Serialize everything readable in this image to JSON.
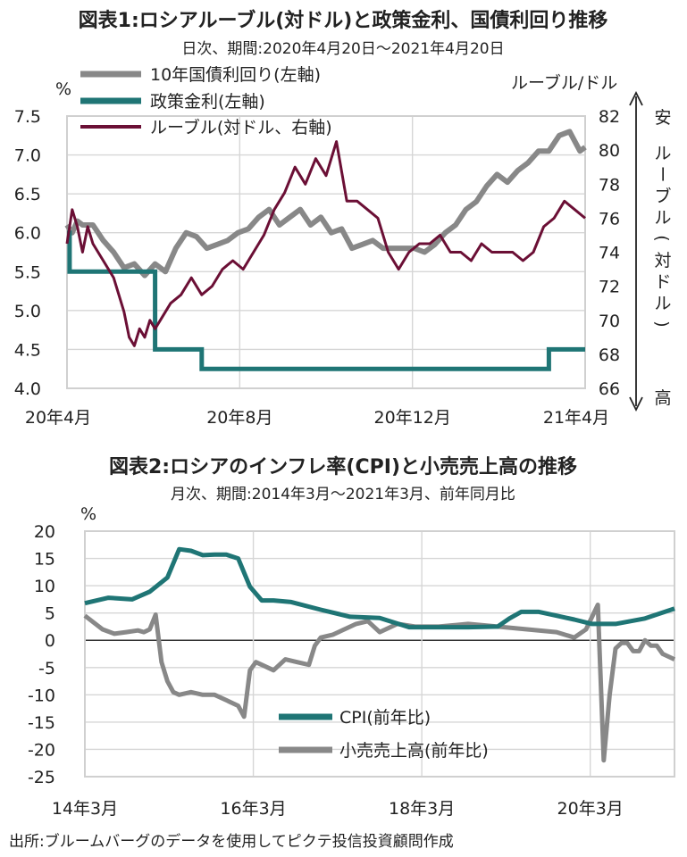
{
  "colors": {
    "bond": "#888888",
    "policy": "#1f7575",
    "rub": "#6b0f35",
    "cpi": "#1f7575",
    "retail": "#888888",
    "grid": "#d6d6d6",
    "text": "#222222"
  },
  "chart1": {
    "title": "図表1:ロシアルーブル(対ドル)と政策金利、国債利回り推移",
    "subtitle": "日次、期間:2020年4月20日～2021年4月20日",
    "left_unit": "%",
    "right_unit": "ルーブル/ドル",
    "right_axis_label_chars": [
      "ル",
      "ー",
      "ブ",
      "ル",
      "(",
      "対",
      "ド",
      "ル",
      ")"
    ],
    "right_axis_top": "安",
    "right_axis_bottom": "高",
    "legend": [
      "10年国債利回り(左軸)",
      "政策金利(左軸)",
      "ルーブル(対ドル、右軸)"
    ],
    "left_ticks": [
      "7.5",
      "7.0",
      "6.5",
      "6.0",
      "5.5",
      "5.0",
      "4.5",
      "4.0"
    ],
    "right_ticks": [
      "82",
      "80",
      "78",
      "76",
      "74",
      "72",
      "70",
      "68",
      "66"
    ],
    "x_ticks": [
      "20年4月",
      "20年8月",
      "20年12月",
      "21年4月"
    ]
  },
  "chart2": {
    "title": "図表2:ロシアのインフレ率(CPI)と小売売上高の推移",
    "subtitle": "月次、期間:2014年3月～2021年3月、前年同月比",
    "unit": "%",
    "y_ticks": [
      "20",
      "15",
      "10",
      "5",
      "0",
      "-5",
      "-10",
      "-15",
      "-20",
      "-25"
    ],
    "x_ticks": [
      "14年3月",
      "16年3月",
      "18年3月",
      "20年3月"
    ],
    "legend": [
      "CPI(前年比)",
      "小売売上高(前年比)"
    ]
  },
  "source": "出所:ブルームバーグのデータを使用してピクテ投信投資顧問作成",
  "chart_data": [
    {
      "type": "line",
      "title": "図表1:ロシアルーブル(対ドル)と政策金利、国債利回り推移",
      "x_range": [
        "2020-04-20",
        "2021-04-20"
      ],
      "x_ticks": [
        "20年4月",
        "20年8月",
        "20年12月",
        "21年4月"
      ],
      "y_left_range": [
        4.0,
        7.5
      ],
      "y_right_range": [
        66,
        82
      ],
      "y_right_direction": "inverted-label: 安 top, 高 bottom",
      "series": [
        {
          "name": "10年国債利回り(左軸)",
          "axis": "left",
          "t": [
            0,
            0.01,
            0.02,
            0.03,
            0.05,
            0.07,
            0.09,
            0.11,
            0.13,
            0.15,
            0.17,
            0.19,
            0.21,
            0.23,
            0.25,
            0.27,
            0.29,
            0.31,
            0.33,
            0.35,
            0.37,
            0.39,
            0.41,
            0.43,
            0.45,
            0.47,
            0.49,
            0.51,
            0.53,
            0.55,
            0.57,
            0.59,
            0.61,
            0.63,
            0.65,
            0.67,
            0.69,
            0.71,
            0.73,
            0.75,
            0.77,
            0.79,
            0.81,
            0.83,
            0.85,
            0.87,
            0.89,
            0.91,
            0.93,
            0.95,
            0.97,
            0.99,
            1.0
          ],
          "values": [
            6.1,
            6.0,
            6.15,
            6.1,
            6.1,
            5.9,
            5.75,
            5.55,
            5.6,
            5.45,
            5.6,
            5.5,
            5.8,
            6.0,
            5.95,
            5.8,
            5.85,
            5.9,
            6.0,
            6.05,
            6.2,
            6.3,
            6.1,
            6.2,
            6.3,
            6.1,
            6.2,
            6.0,
            6.05,
            5.8,
            5.85,
            5.9,
            5.8,
            5.8,
            5.8,
            5.8,
            5.75,
            5.85,
            6.0,
            6.1,
            6.3,
            6.4,
            6.6,
            6.75,
            6.65,
            6.8,
            6.9,
            7.05,
            7.05,
            7.25,
            7.3,
            7.05,
            7.1
          ]
        },
        {
          "name": "政策金利(左軸)",
          "axis": "left",
          "steps": [
            {
              "from": 0.0,
              "to": 0.005,
              "value": 6.0
            },
            {
              "from": 0.005,
              "to": 0.17,
              "value": 5.5
            },
            {
              "from": 0.17,
              "to": 0.26,
              "value": 4.5
            },
            {
              "from": 0.26,
              "to": 0.93,
              "value": 4.25
            },
            {
              "from": 0.93,
              "to": 1.0,
              "value": 4.5
            }
          ]
        },
        {
          "name": "ルーブル(対ドル、右軸)",
          "axis": "right",
          "t": [
            0,
            0.01,
            0.02,
            0.03,
            0.04,
            0.05,
            0.07,
            0.09,
            0.11,
            0.12,
            0.13,
            0.14,
            0.15,
            0.16,
            0.17,
            0.18,
            0.2,
            0.22,
            0.24,
            0.26,
            0.28,
            0.3,
            0.32,
            0.34,
            0.36,
            0.38,
            0.4,
            0.42,
            0.44,
            0.46,
            0.48,
            0.5,
            0.52,
            0.54,
            0.56,
            0.58,
            0.6,
            0.62,
            0.64,
            0.66,
            0.68,
            0.7,
            0.72,
            0.74,
            0.76,
            0.78,
            0.8,
            0.82,
            0.84,
            0.86,
            0.88,
            0.9,
            0.92,
            0.94,
            0.96,
            0.98,
            1.0
          ],
          "values": [
            74.5,
            76.5,
            75.5,
            74,
            75.5,
            74.5,
            73.5,
            72.5,
            70.5,
            69,
            68.5,
            69.5,
            69,
            70,
            69.5,
            70,
            71,
            71.5,
            72.5,
            71.5,
            72,
            73,
            73.5,
            73,
            74,
            75,
            76.5,
            77.5,
            79,
            78,
            79.5,
            78.5,
            80.5,
            77,
            77,
            76.5,
            76,
            74,
            73,
            74,
            74.5,
            74.5,
            75,
            74,
            74,
            73.5,
            74.5,
            74,
            74,
            74,
            73.5,
            74,
            75.5,
            76,
            77,
            76.5,
            76
          ]
        }
      ]
    },
    {
      "type": "line",
      "title": "図表2:ロシアのインフレ率(CPI)と小売売上高の推移",
      "x_range": [
        "2014-03",
        "2021-03"
      ],
      "x_ticks": [
        "14年3月",
        "16年3月",
        "18年3月",
        "20年3月"
      ],
      "ylim": [
        -25,
        20
      ],
      "series": [
        {
          "name": "CPI(前年比)",
          "t": [
            0,
            0.04,
            0.08,
            0.11,
            0.14,
            0.16,
            0.18,
            0.2,
            0.22,
            0.24,
            0.26,
            0.28,
            0.3,
            0.32,
            0.35,
            0.4,
            0.45,
            0.5,
            0.55,
            0.6,
            0.65,
            0.7,
            0.72,
            0.74,
            0.77,
            0.8,
            0.83,
            0.86,
            0.9,
            0.95,
            1.0
          ],
          "values": [
            6.8,
            7.8,
            7.5,
            8.9,
            11.5,
            16.7,
            16.4,
            15.6,
            15.7,
            15.7,
            15.0,
            9.8,
            7.3,
            7.3,
            7.0,
            5.6,
            4.3,
            4.1,
            2.4,
            2.4,
            2.4,
            2.5,
            4.0,
            5.2,
            5.2,
            4.5,
            3.8,
            3.0,
            3.0,
            4.0,
            5.8
          ]
        },
        {
          "name": "小売売上高(前年比)",
          "t": [
            0,
            0.03,
            0.05,
            0.07,
            0.09,
            0.1,
            0.11,
            0.12,
            0.13,
            0.14,
            0.15,
            0.16,
            0.18,
            0.2,
            0.22,
            0.24,
            0.26,
            0.27,
            0.28,
            0.29,
            0.3,
            0.32,
            0.34,
            0.36,
            0.38,
            0.39,
            0.4,
            0.42,
            0.44,
            0.46,
            0.48,
            0.5,
            0.53,
            0.56,
            0.6,
            0.65,
            0.7,
            0.75,
            0.8,
            0.83,
            0.85,
            0.87,
            0.88,
            0.89,
            0.9,
            0.91,
            0.92,
            0.93,
            0.94,
            0.95,
            0.96,
            0.97,
            0.98,
            1.0
          ],
          "values": [
            4.5,
            2.0,
            1.2,
            1.5,
            1.8,
            1.5,
            2.0,
            4.7,
            -4.0,
            -7.5,
            -9.5,
            -10.0,
            -9.5,
            -10.0,
            -10.0,
            -11.0,
            -12.0,
            -14.0,
            -5.5,
            -4.0,
            -4.5,
            -5.5,
            -3.5,
            -4.0,
            -4.5,
            -1.0,
            0.5,
            1.0,
            2.0,
            3.0,
            3.5,
            1.5,
            3.0,
            2.5,
            2.5,
            3.0,
            2.5,
            2.0,
            1.5,
            0.5,
            2.0,
            6.5,
            -22.0,
            -10.0,
            -1.5,
            -0.5,
            -0.5,
            -2.0,
            -2.0,
            0,
            -1.0,
            -1.0,
            -2.5,
            -3.5
          ]
        }
      ]
    }
  ]
}
